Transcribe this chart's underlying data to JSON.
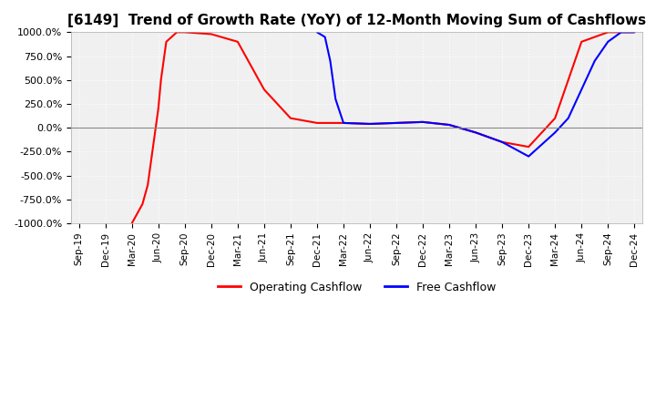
{
  "title": "[6149]  Trend of Growth Rate (YoY) of 12-Month Moving Sum of Cashflows",
  "title_fontsize": 11,
  "ylim": [
    -1000,
    1000
  ],
  "yticks": [
    -1000,
    -750,
    -500,
    -250,
    0,
    250,
    500,
    750,
    1000
  ],
  "yticklabels": [
    "-1000.0%",
    "-750.0%",
    "-500.0%",
    "-250.0%",
    "0.0%",
    "250.0%",
    "500.0%",
    "750.0%",
    "1000.0%"
  ],
  "background_color": "#ffffff",
  "plot_background": "#f0f0f0",
  "grid_color": "#ffffff",
  "legend_labels": [
    "Operating Cashflow",
    "Free Cashflow"
  ],
  "line_colors": [
    "#ff0000",
    "#0000ff"
  ],
  "x_labels": [
    "Sep-19",
    "Dec-19",
    "Mar-20",
    "Jun-20",
    "Sep-20",
    "Dec-20",
    "Mar-21",
    "Jun-21",
    "Sep-21",
    "Dec-21",
    "Mar-22",
    "Jun-22",
    "Sep-22",
    "Dec-22",
    "Mar-23",
    "Jun-23",
    "Sep-23",
    "Dec-23",
    "Mar-24",
    "Jun-24",
    "Sep-24",
    "Dec-24"
  ],
  "op_x": [
    2,
    2.4,
    2.6,
    2.8,
    3.0,
    3.1,
    3.2,
    3.3,
    3.5,
    3.7,
    4,
    5,
    6,
    7,
    8,
    9,
    10,
    11,
    12,
    13,
    14,
    15,
    16,
    17,
    18,
    19,
    20,
    21
  ],
  "op_y": [
    -1000,
    -800,
    -600,
    -200,
    200,
    500,
    700,
    900,
    950,
    1000,
    1000,
    980,
    900,
    400,
    100,
    50,
    50,
    40,
    50,
    60,
    30,
    -50,
    -150,
    -200,
    100,
    900,
    1000,
    1000
  ],
  "free_x": [
    9,
    9.3,
    9.5,
    9.7,
    10,
    11,
    12,
    13,
    14,
    15,
    16,
    17,
    18,
    18.5,
    19,
    19.5,
    20,
    20.5,
    21
  ],
  "free_y": [
    1000,
    950,
    700,
    300,
    50,
    40,
    50,
    60,
    30,
    -50,
    -150,
    -300,
    -50,
    100,
    400,
    700,
    900,
    1000,
    1000
  ]
}
